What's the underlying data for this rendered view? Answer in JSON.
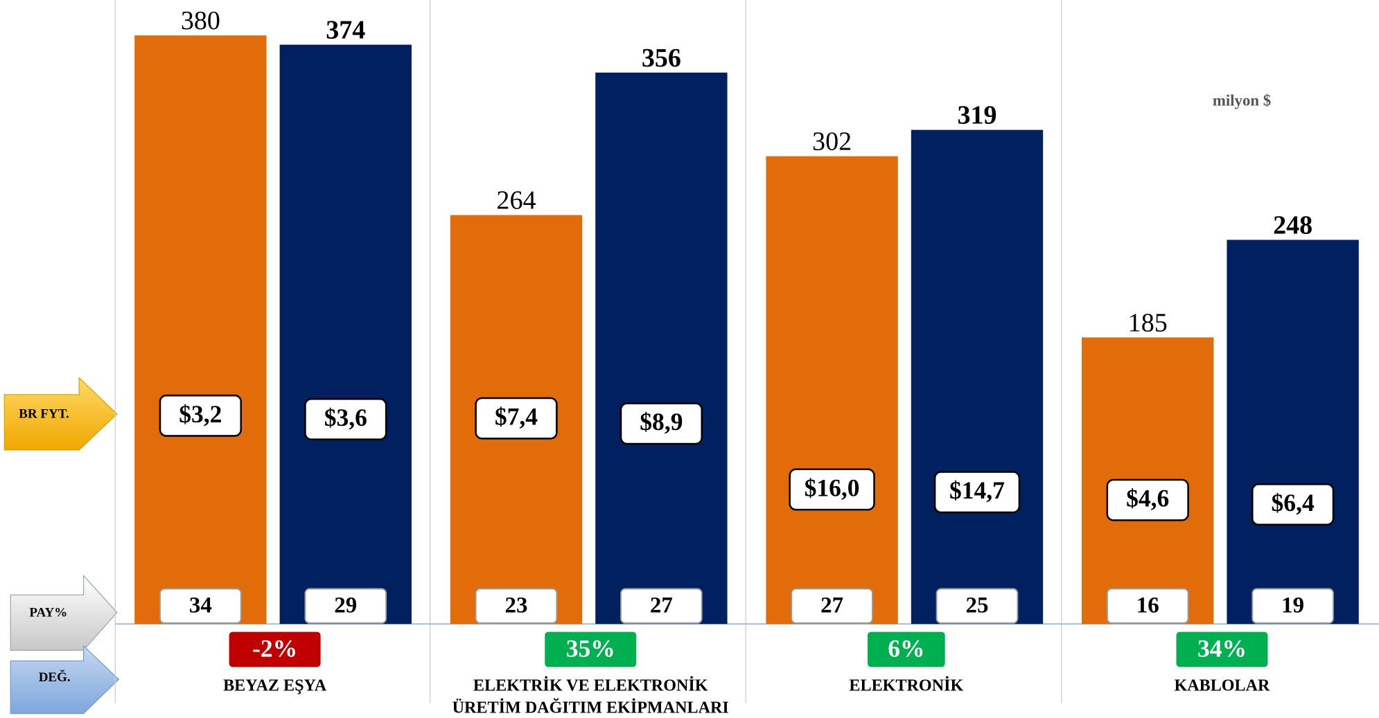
{
  "chart_data": {
    "type": "bar",
    "annotation": "milyon $",
    "categories": [
      "BEYAZ EŞYA",
      "ELEKTRİK VE ELEKTRONİK ÜRETİM DAĞITIM EKİPMANLARI",
      "ELEKTRONİK",
      "KABLOLAR"
    ],
    "series": [
      {
        "color": "#e36c0a",
        "bold_labels": false,
        "values": [
          380,
          264,
          302,
          185
        ],
        "unit_prices": [
          3.2,
          7.4,
          16.0,
          4.6
        ],
        "unit_price_labels": [
          "$3,2",
          "$7,4",
          "$16,0",
          "$4,6"
        ],
        "shares": [
          34,
          23,
          27,
          16
        ]
      },
      {
        "color": "#002060",
        "bold_labels": true,
        "values": [
          374,
          356,
          319,
          248
        ],
        "unit_prices": [
          3.6,
          8.9,
          14.7,
          6.4
        ],
        "unit_price_labels": [
          "$3,6",
          "$8,9",
          "$14,7",
          "$6,4"
        ],
        "shares": [
          29,
          27,
          25,
          19
        ]
      }
    ],
    "changes": {
      "values": [
        -2,
        35,
        6,
        34
      ],
      "value_labels": [
        "-2%",
        "35%",
        "6%",
        "34%"
      ],
      "colors": [
        "#c00000",
        "#00b050",
        "#00b050",
        "#00b050"
      ]
    },
    "row_labels": {
      "unit_price": "BR FYT.",
      "share": "PAY%",
      "change": "DEĞ."
    },
    "ylim": [
      0,
      400
    ]
  }
}
